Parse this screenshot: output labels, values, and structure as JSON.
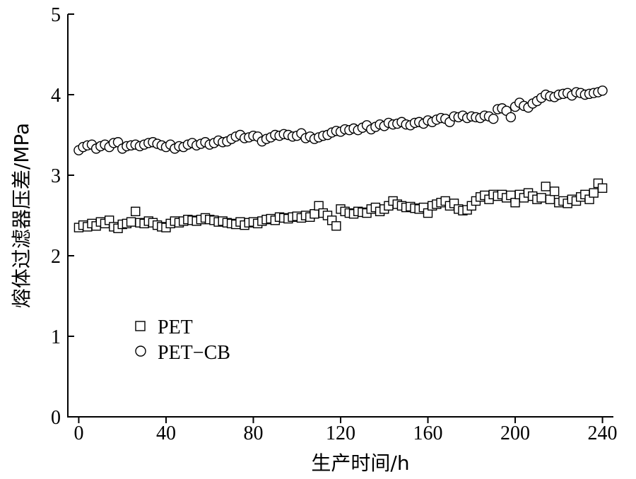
{
  "chart_data": {
    "type": "scatter",
    "xlabel": "生产时间/h",
    "ylabel": "熔体过滤器压差/MPa",
    "xlim": [
      -5,
      245
    ],
    "ylim": [
      0,
      5
    ],
    "xticks": [
      0,
      40,
      80,
      120,
      160,
      200,
      240
    ],
    "yticks": [
      0,
      1,
      2,
      3,
      4,
      5
    ],
    "xtick_labels": [
      "0",
      "40",
      "80",
      "120",
      "160",
      "200",
      "240"
    ],
    "ytick_labels": [
      "0",
      "1",
      "2",
      "3",
      "4",
      "5"
    ],
    "grid": false,
    "legend_position": "lower-left",
    "series": [
      {
        "name": "PET",
        "marker": "square",
        "x": [
          0,
          2,
          4,
          6,
          8,
          10,
          12,
          14,
          16,
          18,
          20,
          22,
          24,
          26,
          28,
          30,
          32,
          34,
          36,
          38,
          40,
          42,
          44,
          46,
          48,
          50,
          52,
          54,
          56,
          58,
          60,
          62,
          64,
          66,
          68,
          70,
          72,
          74,
          76,
          78,
          80,
          82,
          84,
          86,
          88,
          90,
          92,
          94,
          96,
          98,
          100,
          102,
          104,
          106,
          108,
          110,
          112,
          114,
          116,
          118,
          120,
          122,
          124,
          126,
          128,
          130,
          132,
          134,
          136,
          138,
          140,
          142,
          144,
          146,
          148,
          150,
          152,
          154,
          156,
          158,
          160,
          162,
          164,
          166,
          168,
          170,
          172,
          174,
          176,
          178,
          180,
          182,
          184,
          186,
          188,
          190,
          192,
          194,
          196,
          198,
          200,
          202,
          204,
          206,
          208,
          210,
          212,
          214,
          216,
          218,
          220,
          222,
          224,
          226,
          228,
          230,
          232,
          234,
          236,
          238,
          240
        ],
        "y": [
          2.35,
          2.38,
          2.36,
          2.4,
          2.37,
          2.42,
          2.4,
          2.44,
          2.36,
          2.34,
          2.39,
          2.4,
          2.42,
          2.55,
          2.41,
          2.4,
          2.43,
          2.41,
          2.38,
          2.36,
          2.35,
          2.4,
          2.43,
          2.41,
          2.43,
          2.45,
          2.44,
          2.43,
          2.45,
          2.47,
          2.45,
          2.44,
          2.42,
          2.43,
          2.41,
          2.4,
          2.39,
          2.42,
          2.38,
          2.41,
          2.42,
          2.4,
          2.43,
          2.45,
          2.46,
          2.44,
          2.48,
          2.47,
          2.46,
          2.48,
          2.49,
          2.47,
          2.5,
          2.48,
          2.52,
          2.62,
          2.53,
          2.5,
          2.44,
          2.37,
          2.58,
          2.55,
          2.53,
          2.52,
          2.55,
          2.54,
          2.53,
          2.58,
          2.6,
          2.55,
          2.58,
          2.62,
          2.68,
          2.64,
          2.62,
          2.6,
          2.61,
          2.59,
          2.58,
          2.6,
          2.53,
          2.62,
          2.64,
          2.66,
          2.68,
          2.62,
          2.65,
          2.58,
          2.56,
          2.57,
          2.62,
          2.68,
          2.73,
          2.75,
          2.7,
          2.76,
          2.74,
          2.76,
          2.72,
          2.75,
          2.66,
          2.76,
          2.72,
          2.78,
          2.74,
          2.7,
          2.72,
          2.86,
          2.7,
          2.8,
          2.66,
          2.68,
          2.65,
          2.7,
          2.68,
          2.73,
          2.76,
          2.7,
          2.78,
          2.9,
          2.84
        ]
      },
      {
        "name": "PET−CB",
        "marker": "circle",
        "x": [
          0,
          2,
          4,
          6,
          8,
          10,
          12,
          14,
          16,
          18,
          20,
          22,
          24,
          26,
          28,
          30,
          32,
          34,
          36,
          38,
          40,
          42,
          44,
          46,
          48,
          50,
          52,
          54,
          56,
          58,
          60,
          62,
          64,
          66,
          68,
          70,
          72,
          74,
          76,
          78,
          80,
          82,
          84,
          86,
          88,
          90,
          92,
          94,
          96,
          98,
          100,
          102,
          104,
          106,
          108,
          110,
          112,
          114,
          116,
          118,
          120,
          122,
          124,
          126,
          128,
          130,
          132,
          134,
          136,
          138,
          140,
          142,
          144,
          146,
          148,
          150,
          152,
          154,
          156,
          158,
          160,
          162,
          164,
          166,
          168,
          170,
          172,
          174,
          176,
          178,
          180,
          182,
          184,
          186,
          188,
          190,
          192,
          194,
          196,
          198,
          200,
          202,
          204,
          206,
          208,
          210,
          212,
          214,
          216,
          218,
          220,
          222,
          224,
          226,
          228,
          230,
          232,
          234,
          236,
          238,
          240
        ],
        "y": [
          3.31,
          3.35,
          3.37,
          3.38,
          3.33,
          3.36,
          3.38,
          3.35,
          3.4,
          3.41,
          3.33,
          3.36,
          3.37,
          3.38,
          3.36,
          3.38,
          3.4,
          3.41,
          3.39,
          3.37,
          3.35,
          3.38,
          3.33,
          3.36,
          3.35,
          3.38,
          3.4,
          3.37,
          3.39,
          3.41,
          3.38,
          3.4,
          3.43,
          3.41,
          3.42,
          3.45,
          3.48,
          3.5,
          3.46,
          3.47,
          3.49,
          3.48,
          3.42,
          3.45,
          3.47,
          3.5,
          3.49,
          3.51,
          3.5,
          3.48,
          3.49,
          3.52,
          3.46,
          3.48,
          3.45,
          3.47,
          3.49,
          3.5,
          3.53,
          3.55,
          3.54,
          3.57,
          3.56,
          3.58,
          3.56,
          3.59,
          3.62,
          3.57,
          3.6,
          3.63,
          3.61,
          3.65,
          3.63,
          3.64,
          3.66,
          3.63,
          3.62,
          3.65,
          3.66,
          3.64,
          3.68,
          3.66,
          3.69,
          3.71,
          3.7,
          3.66,
          3.73,
          3.72,
          3.74,
          3.71,
          3.73,
          3.72,
          3.71,
          3.74,
          3.73,
          3.7,
          3.82,
          3.83,
          3.8,
          3.72,
          3.85,
          3.9,
          3.86,
          3.84,
          3.89,
          3.92,
          3.96,
          4.0,
          3.98,
          3.97,
          4.0,
          4.01,
          4.02,
          3.99,
          4.03,
          4.02,
          4.0,
          4.01,
          4.02,
          4.03,
          4.05
        ]
      }
    ],
    "legend": [
      {
        "label": "PET",
        "marker": "square"
      },
      {
        "label": "PET−CB",
        "marker": "circle"
      }
    ]
  }
}
